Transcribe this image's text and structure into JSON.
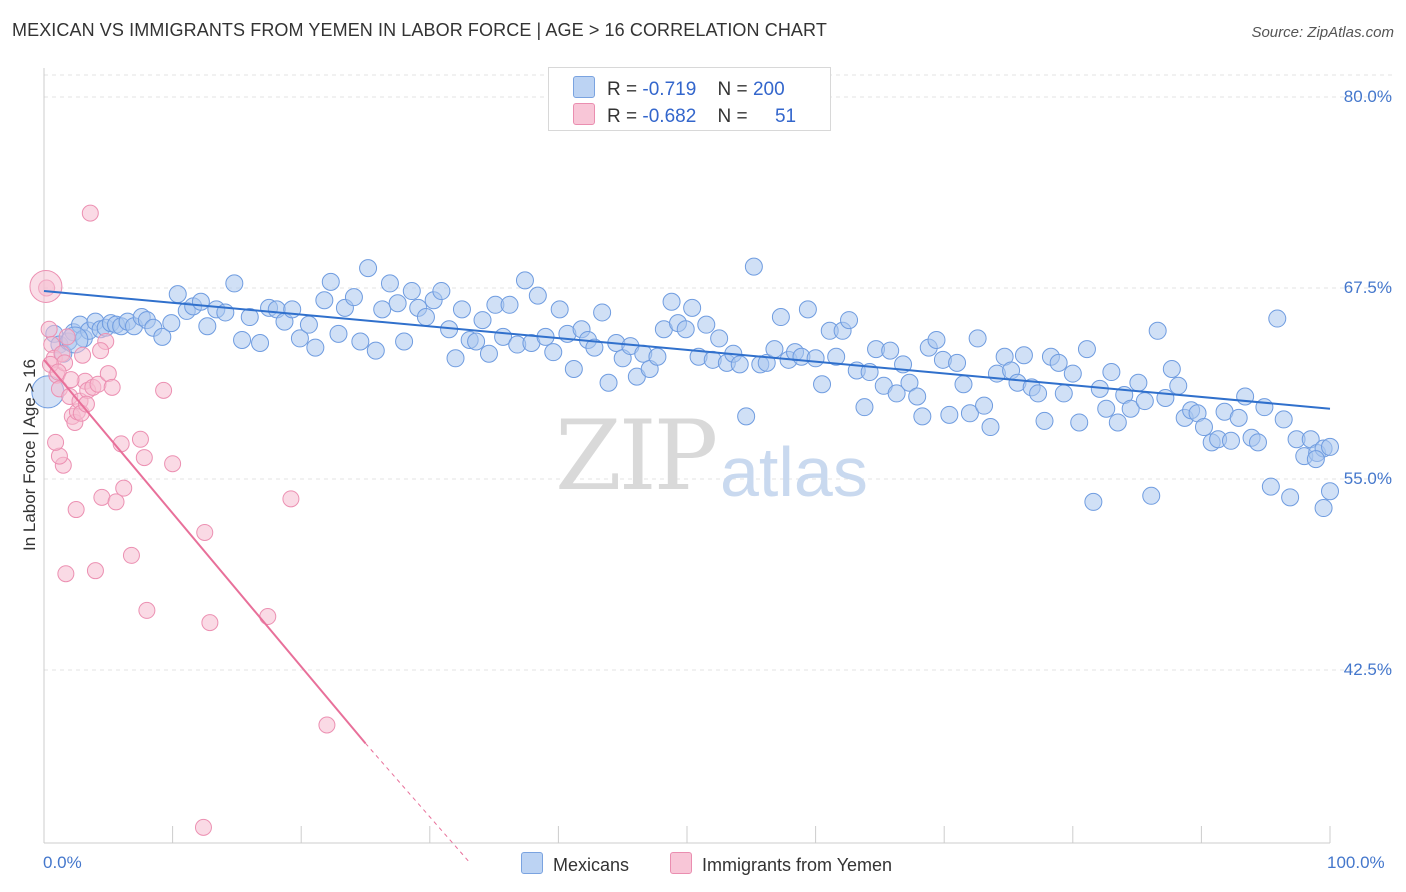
{
  "header": {
    "title": "MEXICAN VS IMMIGRANTS FROM YEMEN IN LABOR FORCE | AGE > 16 CORRELATION CHART",
    "source": "Source: ZipAtlas.com"
  },
  "watermark": {
    "zip": "ZIP",
    "atlas": "atlas"
  },
  "legend": {
    "row1": {
      "r_label": "R =",
      "r_value": "-0.719",
      "n_label": "N =",
      "n_value": "200"
    },
    "row2": {
      "r_label": "R =",
      "r_value": "-0.682",
      "n_label": "N =",
      "n_value": "51"
    }
  },
  "colors": {
    "blue": "#3070cc",
    "blue_fill": "#a9c6ee",
    "pink": "#e8709a",
    "pink_fill": "#f6bcd0",
    "grid": "#e3e3e3",
    "axis_label": "#4477cc"
  },
  "chart_data": {
    "type": "scatter",
    "title": "MEXICAN VS IMMIGRANTS FROM YEMEN IN LABOR FORCE | AGE > 16 CORRELATION CHART",
    "xlabel": "",
    "ylabel": "In Labor Force | Age > 16",
    "xlim": [
      0,
      100
    ],
    "ylim": [
      30,
      82
    ],
    "x_tick_labels": [
      "0.0%",
      "100.0%"
    ],
    "y_tick_labels": [
      "80.0%",
      "67.5%",
      "55.0%",
      "42.5%"
    ],
    "y_ticks": [
      80.0,
      67.5,
      55.0,
      42.5
    ],
    "legend_position": "top-center",
    "grid": true,
    "series": [
      {
        "name": "Mexicans",
        "color": "#3070cc",
        "R": -0.719,
        "N": 200,
        "trend": {
          "x": [
            0,
            100
          ],
          "y": [
            67.3,
            59.6
          ]
        },
        "points": [
          [
            0.8,
            64.5
          ],
          [
            1.2,
            63.8
          ],
          [
            1.5,
            63.2
          ],
          [
            1.9,
            64.0
          ],
          [
            2.3,
            64.6
          ],
          [
            2.8,
            65.1
          ],
          [
            3.1,
            64.2
          ],
          [
            3.5,
            64.7
          ],
          [
            4.0,
            65.3
          ],
          [
            4.4,
            64.8
          ],
          [
            4.8,
            64.9
          ],
          [
            5.2,
            65.2
          ],
          [
            5.6,
            65.1
          ],
          [
            6.0,
            65.0
          ],
          [
            6.5,
            65.3
          ],
          [
            7.0,
            65.0
          ],
          [
            7.6,
            65.6
          ],
          [
            8.0,
            65.4
          ],
          [
            8.5,
            64.9
          ],
          [
            9.2,
            64.3
          ],
          [
            9.9,
            65.2
          ],
          [
            10.4,
            67.1
          ],
          [
            11.1,
            66.0
          ],
          [
            11.6,
            66.3
          ],
          [
            12.2,
            66.6
          ],
          [
            12.7,
            65.0
          ],
          [
            13.4,
            66.1
          ],
          [
            14.1,
            65.9
          ],
          [
            14.8,
            67.8
          ],
          [
            15.4,
            64.1
          ],
          [
            16.0,
            65.6
          ],
          [
            16.8,
            63.9
          ],
          [
            17.5,
            66.2
          ],
          [
            18.1,
            66.1
          ],
          [
            18.7,
            65.3
          ],
          [
            19.3,
            66.1
          ],
          [
            19.9,
            64.2
          ],
          [
            20.6,
            65.1
          ],
          [
            21.1,
            63.6
          ],
          [
            21.8,
            66.7
          ],
          [
            22.3,
            67.9
          ],
          [
            22.9,
            64.5
          ],
          [
            23.4,
            66.2
          ],
          [
            24.1,
            66.9
          ],
          [
            24.6,
            64.0
          ],
          [
            25.2,
            68.8
          ],
          [
            25.8,
            63.4
          ],
          [
            26.3,
            66.1
          ],
          [
            26.9,
            67.8
          ],
          [
            27.5,
            66.5
          ],
          [
            28.0,
            64.0
          ],
          [
            28.6,
            67.3
          ],
          [
            29.1,
            66.2
          ],
          [
            29.7,
            65.6
          ],
          [
            30.3,
            66.7
          ],
          [
            30.9,
            67.3
          ],
          [
            31.5,
            64.8
          ],
          [
            32.0,
            62.9
          ],
          [
            32.5,
            66.1
          ],
          [
            33.1,
            64.1
          ],
          [
            33.6,
            64.0
          ],
          [
            34.1,
            65.4
          ],
          [
            34.6,
            63.2
          ],
          [
            35.1,
            66.4
          ],
          [
            35.7,
            64.3
          ],
          [
            36.2,
            66.4
          ],
          [
            36.8,
            63.8
          ],
          [
            37.4,
            68.0
          ],
          [
            37.9,
            63.9
          ],
          [
            38.4,
            67.0
          ],
          [
            39.0,
            64.3
          ],
          [
            39.6,
            63.3
          ],
          [
            40.1,
            66.1
          ],
          [
            40.7,
            64.5
          ],
          [
            41.2,
            62.2
          ],
          [
            41.8,
            64.8
          ],
          [
            42.3,
            64.1
          ],
          [
            42.8,
            63.6
          ],
          [
            43.4,
            65.9
          ],
          [
            43.9,
            61.3
          ],
          [
            44.5,
            63.9
          ],
          [
            45.0,
            62.9
          ],
          [
            45.6,
            63.7
          ],
          [
            46.1,
            61.7
          ],
          [
            46.6,
            63.2
          ],
          [
            47.1,
            62.2
          ],
          [
            47.7,
            63.0
          ],
          [
            48.2,
            64.8
          ],
          [
            48.8,
            66.6
          ],
          [
            49.3,
            65.2
          ],
          [
            49.9,
            64.8
          ],
          [
            50.4,
            66.2
          ],
          [
            50.9,
            63.0
          ],
          [
            51.5,
            65.1
          ],
          [
            52.0,
            62.8
          ],
          [
            52.5,
            64.2
          ],
          [
            53.1,
            62.6
          ],
          [
            53.6,
            63.2
          ],
          [
            54.1,
            62.5
          ],
          [
            54.6,
            59.1
          ],
          [
            55.2,
            68.9
          ],
          [
            55.7,
            62.5
          ],
          [
            56.2,
            62.6
          ],
          [
            56.8,
            63.5
          ],
          [
            57.3,
            65.6
          ],
          [
            57.9,
            62.8
          ],
          [
            58.4,
            63.3
          ],
          [
            58.9,
            63.0
          ],
          [
            59.4,
            66.1
          ],
          [
            60.0,
            62.9
          ],
          [
            60.5,
            61.2
          ],
          [
            61.1,
            64.7
          ],
          [
            61.6,
            63.0
          ],
          [
            62.1,
            64.7
          ],
          [
            62.6,
            65.4
          ],
          [
            63.2,
            62.1
          ],
          [
            63.8,
            59.7
          ],
          [
            64.2,
            62.0
          ],
          [
            64.7,
            63.5
          ],
          [
            65.3,
            61.1
          ],
          [
            65.8,
            63.4
          ],
          [
            66.3,
            60.6
          ],
          [
            66.8,
            62.5
          ],
          [
            67.3,
            61.3
          ],
          [
            67.9,
            60.4
          ],
          [
            68.3,
            59.1
          ],
          [
            68.8,
            63.6
          ],
          [
            69.4,
            64.1
          ],
          [
            69.9,
            62.8
          ],
          [
            70.4,
            59.2
          ],
          [
            71.0,
            62.6
          ],
          [
            71.5,
            61.2
          ],
          [
            72.0,
            59.3
          ],
          [
            72.6,
            64.2
          ],
          [
            73.1,
            59.8
          ],
          [
            73.6,
            58.4
          ],
          [
            74.1,
            61.9
          ],
          [
            74.7,
            63.0
          ],
          [
            75.2,
            62.1
          ],
          [
            75.7,
            61.3
          ],
          [
            76.2,
            63.1
          ],
          [
            76.8,
            61.0
          ],
          [
            77.3,
            60.6
          ],
          [
            77.8,
            58.8
          ],
          [
            78.3,
            63.0
          ],
          [
            78.9,
            62.6
          ],
          [
            79.3,
            60.6
          ],
          [
            80.0,
            61.9
          ],
          [
            80.5,
            58.7
          ],
          [
            81.1,
            63.5
          ],
          [
            81.6,
            53.5
          ],
          [
            82.1,
            60.9
          ],
          [
            82.6,
            59.6
          ],
          [
            83.0,
            62.0
          ],
          [
            83.5,
            58.7
          ],
          [
            84.0,
            60.5
          ],
          [
            84.5,
            59.6
          ],
          [
            85.1,
            61.3
          ],
          [
            85.6,
            60.1
          ],
          [
            86.1,
            53.9
          ],
          [
            86.6,
            64.7
          ],
          [
            87.2,
            60.3
          ],
          [
            87.7,
            62.2
          ],
          [
            88.2,
            61.1
          ],
          [
            88.7,
            59.0
          ],
          [
            89.2,
            59.5
          ],
          [
            89.7,
            59.3
          ],
          [
            90.2,
            58.4
          ],
          [
            90.8,
            57.4
          ],
          [
            91.3,
            57.6
          ],
          [
            91.8,
            59.4
          ],
          [
            92.3,
            57.5
          ],
          [
            92.9,
            59.0
          ],
          [
            93.4,
            60.4
          ],
          [
            93.9,
            57.7
          ],
          [
            94.4,
            57.4
          ],
          [
            94.9,
            59.7
          ],
          [
            95.4,
            54.5
          ],
          [
            95.9,
            65.5
          ],
          [
            96.4,
            58.9
          ],
          [
            96.9,
            53.8
          ],
          [
            97.4,
            57.6
          ],
          [
            98.0,
            56.5
          ],
          [
            98.5,
            57.6
          ],
          [
            99.0,
            56.7
          ],
          [
            99.5,
            57.0
          ],
          [
            100.0,
            57.1
          ],
          [
            99.5,
            53.1
          ],
          [
            100.0,
            54.2
          ],
          [
            98.9,
            56.3
          ]
        ]
      },
      {
        "name": "Immigrants from Yemen",
        "color": "#e8709a",
        "R": -0.682,
        "N": 51,
        "trend": {
          "x": [
            0,
            25
          ],
          "y": [
            62.8,
            37.7
          ],
          "dashed_extension": {
            "x": [
              25,
              33
            ],
            "y": [
              37.7,
              30.0
            ]
          }
        },
        "points": [
          [
            0.2,
            67.5
          ],
          [
            0.4,
            64.8
          ],
          [
            0.6,
            63.8
          ],
          [
            0.8,
            62.9
          ],
          [
            1.0,
            61.8
          ],
          [
            1.2,
            60.9
          ],
          [
            1.4,
            63.2
          ],
          [
            1.6,
            62.6
          ],
          [
            1.8,
            64.3
          ],
          [
            2.0,
            60.4
          ],
          [
            2.2,
            59.1
          ],
          [
            2.4,
            58.7
          ],
          [
            2.6,
            59.4
          ],
          [
            2.8,
            60.1
          ],
          [
            3.0,
            63.1
          ],
          [
            3.2,
            61.4
          ],
          [
            3.4,
            60.8
          ],
          [
            3.6,
            72.4
          ],
          [
            3.8,
            61.0
          ],
          [
            4.0,
            49.0
          ],
          [
            4.2,
            61.2
          ],
          [
            4.5,
            53.8
          ],
          [
            4.8,
            64.0
          ],
          [
            5.0,
            61.9
          ],
          [
            5.3,
            61.0
          ],
          [
            5.6,
            53.5
          ],
          [
            6.0,
            57.3
          ],
          [
            6.2,
            54.4
          ],
          [
            6.8,
            50.0
          ],
          [
            7.5,
            57.6
          ],
          [
            7.8,
            56.4
          ],
          [
            8.0,
            46.4
          ],
          [
            9.3,
            60.8
          ],
          [
            10.0,
            56.0
          ],
          [
            12.5,
            51.5
          ],
          [
            12.9,
            45.6
          ],
          [
            17.4,
            46.0
          ],
          [
            19.2,
            53.7
          ],
          [
            22.0,
            38.9
          ],
          [
            12.4,
            32.2
          ],
          [
            2.5,
            53.0
          ],
          [
            1.5,
            55.9
          ],
          [
            1.2,
            56.5
          ],
          [
            0.9,
            57.4
          ],
          [
            1.7,
            48.8
          ],
          [
            2.9,
            59.3
          ],
          [
            0.5,
            62.5
          ],
          [
            1.1,
            62.0
          ],
          [
            2.1,
            61.5
          ],
          [
            3.3,
            59.9
          ],
          [
            4.4,
            63.4
          ]
        ]
      }
    ]
  },
  "bottom_legend": {
    "item1": "Mexicans",
    "item2": "Immigrants from Yemen"
  }
}
